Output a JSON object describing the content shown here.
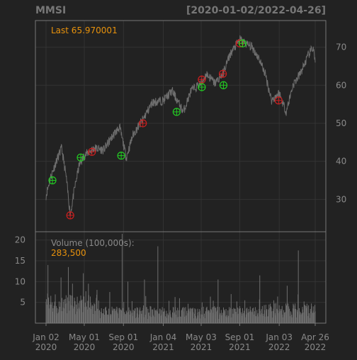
{
  "header": {
    "symbol": "MMSI",
    "date_range": "[2020-01-02/2022-04-26]"
  },
  "price_panel": {
    "last_label": "Last 65.970001",
    "y_ticks": [
      30,
      40,
      50,
      60,
      70
    ],
    "y_tick_labels": [
      "30",
      "40",
      "50",
      "60",
      "70"
    ]
  },
  "volume_panel": {
    "title": "Volume (100,000s):",
    "last_value": "283,500",
    "y_ticks": [
      5,
      10,
      15,
      20
    ],
    "y_tick_labels": [
      "5",
      "10",
      "15",
      "20"
    ]
  },
  "x_axis": {
    "ticks": [
      {
        "date": "2020-01-02",
        "line1": "Jan 02",
        "line2": "2020"
      },
      {
        "date": "2020-05-01",
        "line1": "May 01",
        "line2": "2020"
      },
      {
        "date": "2020-09-01",
        "line1": "Sep 01",
        "line2": "2020"
      },
      {
        "date": "2021-01-04",
        "line1": "Jan 04",
        "line2": "2021"
      },
      {
        "date": "2021-05-03",
        "line1": "May 03",
        "line2": "2021"
      },
      {
        "date": "2021-09-01",
        "line1": "Sep 01",
        "line2": "2021"
      },
      {
        "date": "2022-01-03",
        "line1": "Jan 03",
        "line2": "2022"
      },
      {
        "date": "2022-04-26",
        "line1": "Apr 26",
        "line2": "2022"
      }
    ]
  },
  "colors": {
    "background": "#222222",
    "frame": "#777777",
    "grid": "#333333",
    "axis_text": "#8a8a8a",
    "title_text": "#777777",
    "accent": "#e8920c",
    "price_line": "#6e6e6e",
    "volume_bars": "#6e6e6e",
    "buy_marker": "#22cc22",
    "sell_marker": "#cc1f1f"
  },
  "chart_data": [
    {
      "type": "line",
      "title": "MMSI",
      "subtitle": "[2020-01-02/2022-04-26]",
      "series": [
        {
          "name": "",
          "points": [
            {
              "x": "2020-01-02",
              "y": 31.0
            },
            {
              "x": "2020-01-15",
              "y": 35.5
            },
            {
              "x": "2020-02-01",
              "y": 39.5
            },
            {
              "x": "2020-02-20",
              "y": 43.5
            },
            {
              "x": "2020-03-05",
              "y": 36.0
            },
            {
              "x": "2020-03-18",
              "y": 26.0
            },
            {
              "x": "2020-04-01",
              "y": 33.0
            },
            {
              "x": "2020-04-15",
              "y": 39.0
            },
            {
              "x": "2020-05-01",
              "y": 41.5
            },
            {
              "x": "2020-06-01",
              "y": 43.5
            },
            {
              "x": "2020-07-01",
              "y": 43.0
            },
            {
              "x": "2020-08-01",
              "y": 47.0
            },
            {
              "x": "2020-08-20",
              "y": 49.0
            },
            {
              "x": "2020-09-10",
              "y": 41.0
            },
            {
              "x": "2020-10-01",
              "y": 47.0
            },
            {
              "x": "2020-11-01",
              "y": 51.0
            },
            {
              "x": "2020-12-01",
              "y": 55.5
            },
            {
              "x": "2021-01-04",
              "y": 56.0
            },
            {
              "x": "2021-02-01",
              "y": 58.5
            },
            {
              "x": "2021-03-08",
              "y": 53.0
            },
            {
              "x": "2021-04-01",
              "y": 58.5
            },
            {
              "x": "2021-05-03",
              "y": 60.5
            },
            {
              "x": "2021-05-20",
              "y": 63.0
            },
            {
              "x": "2021-06-15",
              "y": 60.5
            },
            {
              "x": "2021-07-10",
              "y": 63.0
            },
            {
              "x": "2021-08-01",
              "y": 68.0
            },
            {
              "x": "2021-09-01",
              "y": 72.0
            },
            {
              "x": "2021-09-20",
              "y": 71.0
            },
            {
              "x": "2021-10-10",
              "y": 70.0
            },
            {
              "x": "2021-11-01",
              "y": 67.0
            },
            {
              "x": "2021-11-20",
              "y": 63.0
            },
            {
              "x": "2021-12-10",
              "y": 56.0
            },
            {
              "x": "2022-01-03",
              "y": 58.0
            },
            {
              "x": "2022-01-25",
              "y": 53.0
            },
            {
              "x": "2022-02-15",
              "y": 60.0
            },
            {
              "x": "2022-03-10",
              "y": 63.0
            },
            {
              "x": "2022-04-05",
              "y": 68.0
            },
            {
              "x": "2022-04-20",
              "y": 70.0
            },
            {
              "x": "2022-04-26",
              "y": 65.97
            }
          ]
        }
      ],
      "markers": [
        {
          "date": "2020-01-22",
          "price": 35.0,
          "kind": "buy"
        },
        {
          "date": "2020-03-18",
          "price": 25.8,
          "kind": "sell"
        },
        {
          "date": "2020-04-20",
          "price": 41.0,
          "kind": "buy"
        },
        {
          "date": "2020-05-25",
          "price": 42.5,
          "kind": "sell"
        },
        {
          "date": "2020-08-25",
          "price": 41.5,
          "kind": "buy"
        },
        {
          "date": "2020-11-01",
          "price": 50.0,
          "kind": "sell"
        },
        {
          "date": "2021-02-15",
          "price": 53.0,
          "kind": "buy"
        },
        {
          "date": "2021-05-05",
          "price": 61.5,
          "kind": "sell"
        },
        {
          "date": "2021-05-05",
          "price": 59.5,
          "kind": "buy"
        },
        {
          "date": "2021-07-10",
          "price": 63.0,
          "kind": "sell"
        },
        {
          "date": "2021-07-12",
          "price": 60.0,
          "kind": "buy"
        },
        {
          "date": "2021-09-01",
          "price": 71.0,
          "kind": "sell"
        },
        {
          "date": "2021-09-10",
          "price": 71.0,
          "kind": "buy"
        },
        {
          "date": "2022-01-01",
          "price": 56.0,
          "kind": "sell"
        }
      ],
      "ylim": [
        21.5,
        77.0
      ],
      "xlim": [
        "2020-01-02",
        "2022-04-26"
      ],
      "last": 65.970001,
      "grid": true
    },
    {
      "type": "bar",
      "title": "Volume (100,000s):",
      "unit": "100,000s",
      "series": [
        {
          "name": "",
          "points": [
            {
              "x": "2020-01-08",
              "y": 14.0
            },
            {
              "x": "2020-02-18",
              "y": 11.0
            },
            {
              "x": "2020-03-12",
              "y": 13.5
            },
            {
              "x": "2020-03-25",
              "y": 9.5
            },
            {
              "x": "2020-04-28",
              "y": 12.0
            },
            {
              "x": "2020-06-10",
              "y": 8.0
            },
            {
              "x": "2020-07-20",
              "y": 7.5
            },
            {
              "x": "2020-08-28",
              "y": 21.5
            },
            {
              "x": "2020-09-15",
              "y": 10.0
            },
            {
              "x": "2020-11-06",
              "y": 10.5
            },
            {
              "x": "2020-12-18",
              "y": 18.5
            },
            {
              "x": "2021-02-24",
              "y": 6.0
            },
            {
              "x": "2021-05-06",
              "y": 5.0
            },
            {
              "x": "2021-06-25",
              "y": 10.5
            },
            {
              "x": "2021-08-05",
              "y": 7.0
            },
            {
              "x": "2021-09-17",
              "y": 5.5
            },
            {
              "x": "2021-11-03",
              "y": 11.5
            },
            {
              "x": "2021-12-17",
              "y": 5.5
            },
            {
              "x": "2022-01-28",
              "y": 9.0
            },
            {
              "x": "2022-03-04",
              "y": 17.5
            },
            {
              "x": "2022-04-26",
              "y": 2.835
            }
          ]
        }
      ],
      "typical_range": [
        1.0,
        4.0
      ],
      "ylim": [
        0,
        22
      ],
      "last": 2.835
    }
  ]
}
